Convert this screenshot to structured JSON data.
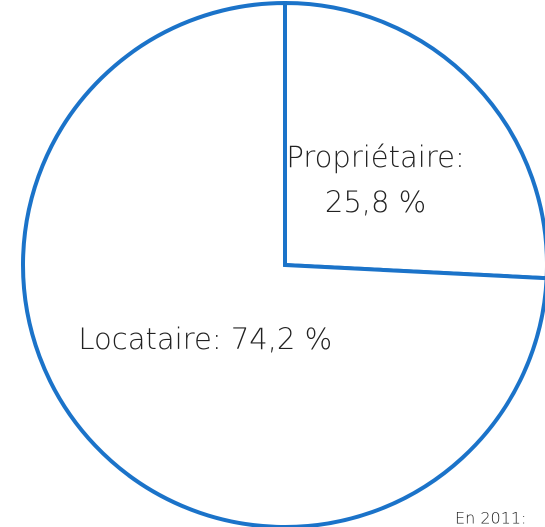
{
  "chart_data": {
    "type": "pie",
    "categories": [
      "Propriétaire:",
      "Locataire:"
    ],
    "values": [
      25.8,
      74.2
    ],
    "value_labels": [
      "25,8 %",
      "74,2 %"
    ],
    "color": "#1b73c9",
    "annotation": "En 2011:"
  }
}
